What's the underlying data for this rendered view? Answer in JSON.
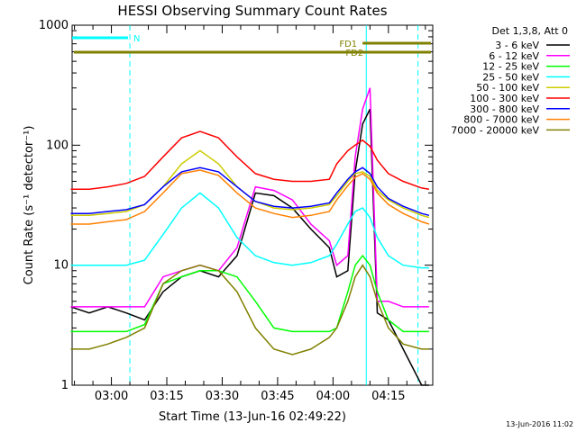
{
  "chart_data": {
    "type": "line",
    "title": "HESSI Observing Summary Count Rates",
    "xlabel": "Start Time (13-Jun-16 02:49:22)",
    "ylabel": "Count Rate (s⁻¹ detector⁻¹)",
    "yscale": "log",
    "ylim": [
      1,
      1000
    ],
    "yticks": [
      1,
      10,
      100,
      1000
    ],
    "ytick_labels": [
      "1",
      "10",
      "100",
      "1000"
    ],
    "xlim": [
      "02:49:22",
      "04:27:00"
    ],
    "xticks": [
      "03:00",
      "03:15",
      "03:30",
      "03:45",
      "04:00",
      "04:15"
    ],
    "legend_header": "Det 1,3,8, Att 0",
    "legend_position": "right",
    "x": [
      "02:49",
      "02:54",
      "02:59",
      "03:04",
      "03:09",
      "03:14",
      "03:19",
      "03:24",
      "03:29",
      "03:34",
      "03:39",
      "03:44",
      "03:49",
      "03:54",
      "03:59",
      "04:01",
      "04:04",
      "04:06",
      "04:08",
      "04:10",
      "04:12",
      "04:15",
      "04:19",
      "04:24",
      "04:26"
    ],
    "series": [
      {
        "name": "3 - 6 keV",
        "color": "#000000",
        "values": [
          4.5,
          4,
          4.5,
          4,
          3.5,
          6,
          8,
          9,
          8,
          12,
          40,
          38,
          30,
          20,
          14,
          8,
          9,
          60,
          150,
          200,
          4,
          3.5,
          2,
          1,
          1
        ]
      },
      {
        "name": "6 - 12 keV",
        "color": "#ff00ff",
        "values": [
          4.5,
          4.5,
          4.5,
          4.5,
          4.5,
          8,
          9,
          10,
          9,
          14,
          45,
          42,
          35,
          22,
          16,
          10,
          12,
          80,
          200,
          300,
          5,
          5,
          4.5,
          4.5,
          4.5
        ]
      },
      {
        "name": "12 - 25 keV",
        "color": "#00ff00",
        "values": [
          2.8,
          2.8,
          2.8,
          2.8,
          3.2,
          7,
          8,
          9,
          9,
          8,
          5,
          3,
          2.8,
          2.8,
          2.8,
          3,
          6,
          10,
          12,
          10,
          6,
          3.5,
          2.8,
          2.8,
          2.8
        ]
      },
      {
        "name": "25 - 50 keV",
        "color": "#00ffff",
        "values": [
          10,
          10,
          10,
          10,
          11,
          18,
          30,
          40,
          30,
          17,
          12,
          10.5,
          10,
          10.5,
          12,
          15,
          22,
          28,
          30,
          25,
          17,
          12,
          10,
          9.5,
          9.5
        ]
      },
      {
        "name": "50 - 100 keV",
        "color": "#cccc00",
        "values": [
          26,
          26,
          27,
          28,
          32,
          45,
          70,
          90,
          70,
          45,
          34,
          30,
          29,
          30,
          32,
          38,
          50,
          58,
          60,
          55,
          42,
          35,
          30,
          26,
          25
        ]
      },
      {
        "name": "100 - 300 keV",
        "color": "#ff0000",
        "values": [
          43,
          43,
          45,
          48,
          55,
          80,
          115,
          130,
          115,
          80,
          58,
          52,
          50,
          50,
          52,
          70,
          90,
          100,
          110,
          98,
          75,
          58,
          50,
          44,
          43
        ]
      },
      {
        "name": "300 - 800 keV",
        "color": "#0000ff",
        "values": [
          27,
          27,
          28,
          29,
          32,
          45,
          60,
          65,
          60,
          45,
          34,
          31,
          30,
          31,
          33,
          40,
          52,
          60,
          65,
          58,
          45,
          36,
          31,
          27,
          26
        ]
      },
      {
        "name": "800 - 7000 keV",
        "color": "#ff8000",
        "values": [
          22,
          22,
          23,
          24,
          28,
          40,
          58,
          62,
          56,
          40,
          30,
          27,
          25,
          26,
          28,
          35,
          46,
          54,
          58,
          52,
          40,
          32,
          27,
          23,
          22
        ]
      },
      {
        "name": "7000 - 20000 keV",
        "color": "#808000",
        "values": [
          2,
          2,
          2.2,
          2.5,
          3,
          7,
          9,
          10,
          9,
          6,
          3,
          2,
          1.8,
          2,
          2.5,
          3,
          5,
          8,
          10,
          8,
          5,
          3,
          2.2,
          2,
          2
        ]
      }
    ],
    "status_bars": [
      {
        "label": "N",
        "color": "#00ffff",
        "start": "02:49:22",
        "end": "03:05"
      },
      {
        "label": "FD1",
        "color": "#808000",
        "start": "04:08",
        "end": "04:27"
      },
      {
        "label": "FD2",
        "color": "#808000",
        "start": "02:49:22",
        "end": "04:27"
      }
    ],
    "vertical_markers": [
      {
        "time": "03:05",
        "color": "#00ffff",
        "style": "dashed"
      },
      {
        "time": "04:09",
        "color": "#00ffff",
        "style": "solid"
      },
      {
        "time": "04:23",
        "color": "#00ffff",
        "style": "dashed"
      }
    ],
    "footer_text": "13-Jun-2016 11:02"
  }
}
